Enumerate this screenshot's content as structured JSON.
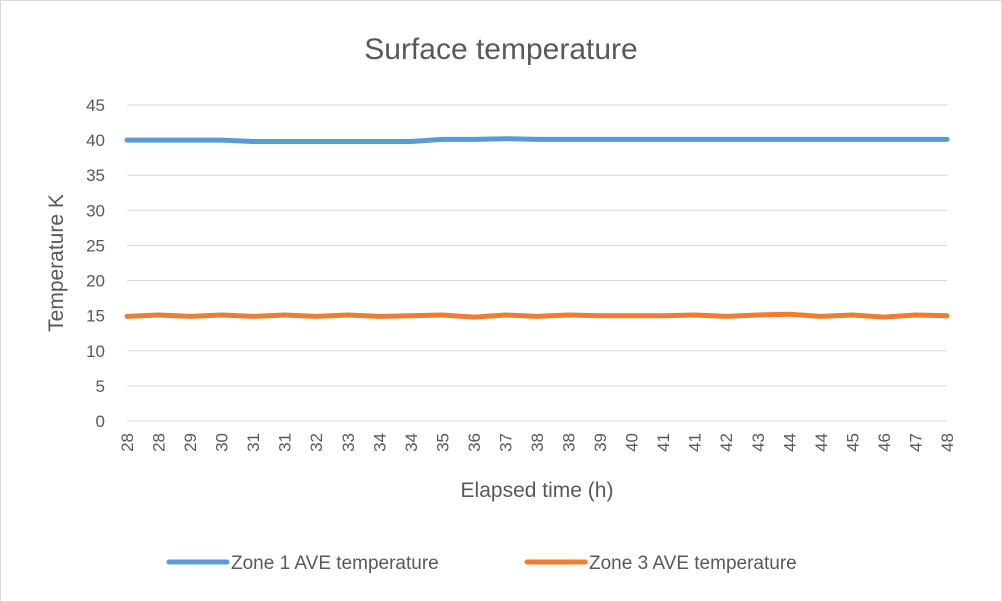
{
  "chart_data": {
    "type": "line",
    "title": "Surface temperature",
    "xlabel": "Elapsed time (h)",
    "ylabel": "Temperature K",
    "ylim": [
      0,
      45
    ],
    "yticks": [
      0,
      5,
      10,
      15,
      20,
      25,
      30,
      35,
      40,
      45
    ],
    "x_tick_labels": [
      "28",
      "28",
      "29",
      "30",
      "31",
      "31",
      "32",
      "33",
      "34",
      "34",
      "35",
      "36",
      "37",
      "38",
      "38",
      "39",
      "40",
      "41",
      "41",
      "42",
      "43",
      "44",
      "44",
      "45",
      "46",
      "47",
      "48"
    ],
    "grid": true,
    "legend_position": "bottom",
    "series": [
      {
        "name": "Zone 1 AVE temperature",
        "color": "#5b9bd5",
        "values": [
          40.0,
          40.0,
          40.0,
          40.0,
          39.8,
          39.8,
          39.8,
          39.8,
          39.8,
          39.8,
          40.1,
          40.1,
          40.2,
          40.1,
          40.1,
          40.1,
          40.1,
          40.1,
          40.1,
          40.1,
          40.1,
          40.1,
          40.1,
          40.1,
          40.1,
          40.1,
          40.1
        ]
      },
      {
        "name": "Zone 3 AVE temperature",
        "color": "#ed7d31",
        "values": [
          14.9,
          15.1,
          14.9,
          15.1,
          14.9,
          15.1,
          14.9,
          15.1,
          14.9,
          15.0,
          15.1,
          14.8,
          15.1,
          14.9,
          15.1,
          15.0,
          15.0,
          15.0,
          15.1,
          14.9,
          15.1,
          15.2,
          14.9,
          15.1,
          14.8,
          15.1,
          15.0
        ]
      }
    ]
  }
}
